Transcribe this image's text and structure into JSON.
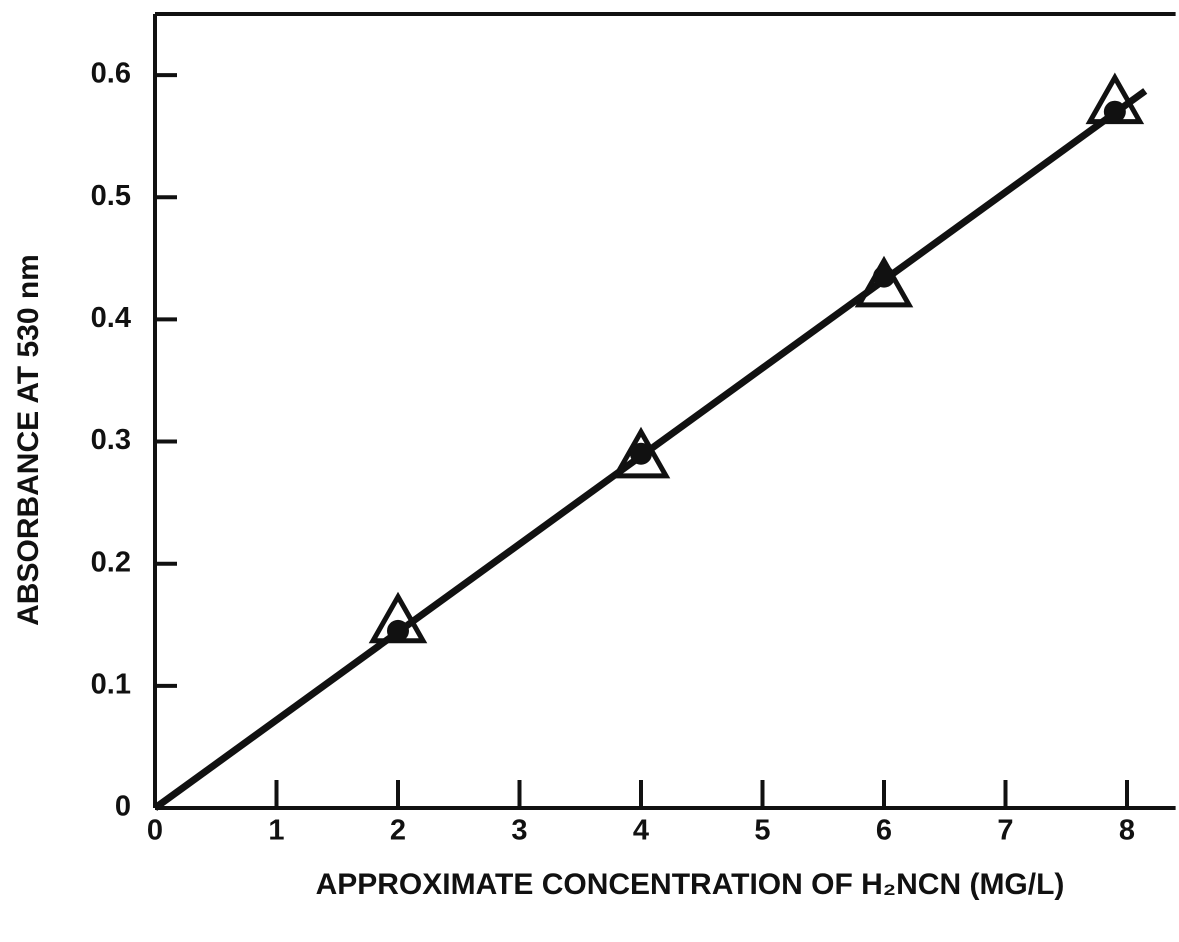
{
  "chart_data": {
    "type": "scatter",
    "x_label": "APPROXIMATE CONCENTRATION OF H₂NCN (MG/L)",
    "y_label": "ABSORBANCE AT 530 nm",
    "xlim": [
      0,
      8.4
    ],
    "xticks": [
      0,
      1,
      2,
      3,
      4,
      5,
      6,
      7,
      8
    ],
    "ylim": [
      0,
      0.65
    ],
    "yticks": [
      0,
      0.1,
      0.2,
      0.3,
      0.4,
      0.5,
      0.6
    ],
    "grid": false,
    "series": [
      {
        "marker": "line",
        "color": "#111111",
        "x": [
          0,
          8.15
        ],
        "values": [
          0,
          0.587
        ]
      },
      {
        "marker": "triangle",
        "color": "#111111",
        "x": [
          2,
          4,
          6,
          7.9
        ],
        "values": [
          0.15,
          0.285,
          0.425,
          0.575
        ]
      },
      {
        "marker": "circle",
        "color": "#111111",
        "x": [
          2,
          4,
          6,
          7.9
        ],
        "values": [
          0.145,
          0.29,
          0.435,
          0.57
        ]
      }
    ]
  }
}
